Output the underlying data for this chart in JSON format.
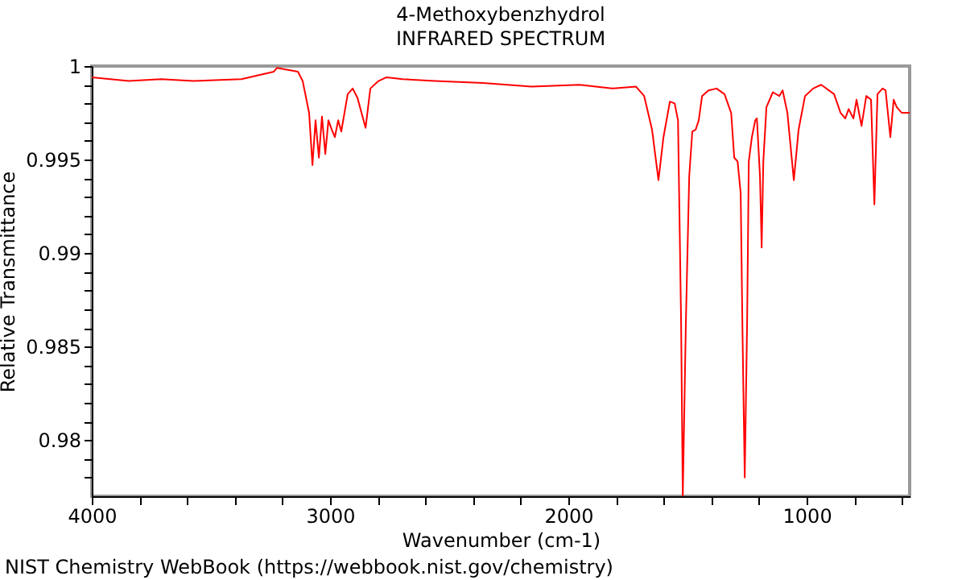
{
  "chart_data": {
    "type": "line",
    "title": "4-Methoxybenzhydrol",
    "subtitle": "INFRARED SPECTRUM",
    "xlabel": "Wavenumber (cm-1)",
    "ylabel": "Relative Transmittance",
    "annotations": [
      "NIST Chemistry WebBook (https://webbook.nist.gov/chemistry)"
    ],
    "x": [
      4000,
      3845,
      3709,
      3574,
      3372,
      3236,
      3223,
      3135,
      3115,
      3088,
      3074,
      3061,
      3047,
      3034,
      3020,
      3007,
      2993,
      2980,
      2966,
      2953,
      2926,
      2905,
      2885,
      2851,
      2831,
      2797,
      2763,
      2696,
      2561,
      2358,
      2155,
      1953,
      1817,
      1716,
      1682,
      1649,
      1622,
      1601,
      1574,
      1554,
      1540,
      1527,
      1520,
      1507,
      1493,
      1480,
      1466,
      1453,
      1439,
      1412,
      1378,
      1345,
      1317,
      1304,
      1290,
      1277,
      1270,
      1260,
      1250,
      1243,
      1230,
      1216,
      1209,
      1196,
      1189,
      1182,
      1169,
      1142,
      1115,
      1101,
      1081,
      1054,
      1034,
      1007,
      973,
      939,
      885,
      858,
      838,
      824,
      804,
      791,
      770,
      750,
      730,
      716,
      703,
      682,
      669,
      649,
      635,
      622,
      601,
      568
    ],
    "series": [
      {
        "color": "#ff0000",
        "values": [
          0.9994,
          0.9992,
          0.9993,
          0.9992,
          0.9993,
          0.9997,
          0.9999,
          0.9997,
          0.9992,
          0.9975,
          0.9947,
          0.9971,
          0.9951,
          0.9973,
          0.9953,
          0.9971,
          0.9966,
          0.9962,
          0.9971,
          0.9965,
          0.9985,
          0.9988,
          0.9983,
          0.9967,
          0.9988,
          0.9992,
          0.9994,
          0.9993,
          0.9992,
          0.9991,
          0.9989,
          0.999,
          0.9988,
          0.9989,
          0.9984,
          0.9966,
          0.9939,
          0.9962,
          0.9981,
          0.998,
          0.9971,
          0.9863,
          0.977,
          0.9863,
          0.9941,
          0.9965,
          0.9966,
          0.9971,
          0.9984,
          0.9987,
          0.9988,
          0.9985,
          0.9975,
          0.9951,
          0.9949,
          0.9932,
          0.9863,
          0.978,
          0.9863,
          0.9949,
          0.9962,
          0.9971,
          0.9972,
          0.9941,
          0.9903,
          0.9949,
          0.9978,
          0.9986,
          0.9984,
          0.9987,
          0.9975,
          0.9939,
          0.9966,
          0.9984,
          0.9988,
          0.999,
          0.9985,
          0.9975,
          0.9972,
          0.9977,
          0.9972,
          0.9982,
          0.9968,
          0.9984,
          0.9982,
          0.9926,
          0.9985,
          0.9988,
          0.9987,
          0.9962,
          0.9982,
          0.9978,
          0.9975,
          0.9975
        ]
      }
    ],
    "xlim": [
      4000,
      568
    ],
    "ylim": [
      0.977,
      1
    ],
    "xticks": [
      {
        "value": 4000,
        "label": "4000"
      },
      {
        "value": 3800,
        "label": null
      },
      {
        "value": 3600,
        "label": null
      },
      {
        "value": 3400,
        "label": null
      },
      {
        "value": 3200,
        "label": null
      },
      {
        "value": 3000,
        "label": "3000"
      },
      {
        "value": 2800,
        "label": null
      },
      {
        "value": 2600,
        "label": null
      },
      {
        "value": 2400,
        "label": null
      },
      {
        "value": 2200,
        "label": null
      },
      {
        "value": 2000,
        "label": "2000"
      },
      {
        "value": 1800,
        "label": null
      },
      {
        "value": 1600,
        "label": null
      },
      {
        "value": 1400,
        "label": null
      },
      {
        "value": 1200,
        "label": null
      },
      {
        "value": 1000,
        "label": "1000"
      },
      {
        "value": 800,
        "label": null
      },
      {
        "value": 600,
        "label": null
      }
    ],
    "yticks": [
      {
        "value": 1,
        "label": "1"
      },
      {
        "value": 0.999,
        "label": null
      },
      {
        "value": 0.998,
        "label": null
      },
      {
        "value": 0.997,
        "label": null
      },
      {
        "value": 0.996,
        "label": null
      },
      {
        "value": 0.995,
        "label": "0.995"
      },
      {
        "value": 0.994,
        "label": null
      },
      {
        "value": 0.993,
        "label": null
      },
      {
        "value": 0.992,
        "label": null
      },
      {
        "value": 0.991,
        "label": null
      },
      {
        "value": 0.99,
        "label": "0.99"
      },
      {
        "value": 0.989,
        "label": null
      },
      {
        "value": 0.988,
        "label": null
      },
      {
        "value": 0.987,
        "label": null
      },
      {
        "value": 0.986,
        "label": null
      },
      {
        "value": 0.985,
        "label": "0.985"
      },
      {
        "value": 0.984,
        "label": null
      },
      {
        "value": 0.983,
        "label": null
      },
      {
        "value": 0.982,
        "label": null
      },
      {
        "value": 0.981,
        "label": null
      },
      {
        "value": 0.98,
        "label": "0.98"
      },
      {
        "value": 0.979,
        "label": null
      },
      {
        "value": 0.978,
        "label": null
      }
    ],
    "grid": false
  }
}
